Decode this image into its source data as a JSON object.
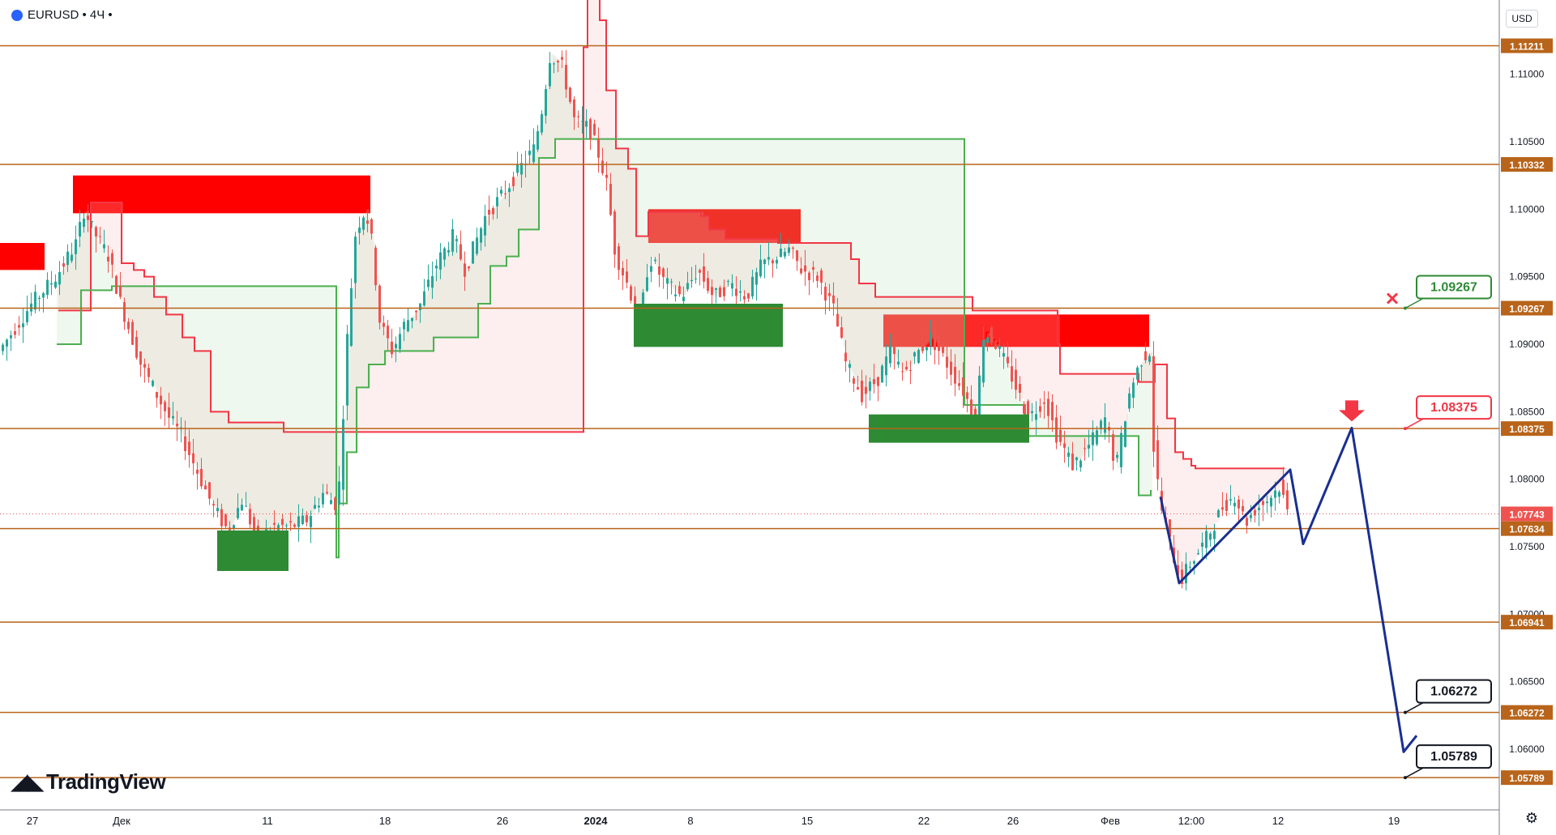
{
  "header": {
    "symbol": "EURUSD",
    "timeframe": "4Ч",
    "title": "EURUSD • 4Ч •",
    "currency": "USD"
  },
  "brand": {
    "logo_text": "TradingView"
  },
  "icons": {
    "globe": "globe-icon",
    "settings": "gear-icon",
    "logo": "tradingview-logo-icon",
    "cross": "cross-icon",
    "down_arrow": "down-arrow-icon"
  },
  "colors": {
    "level_line": "#b8641a",
    "level_label_bg": "#b8641a",
    "supply_zone": "#ff0000",
    "demand_zone": "#2e8b34",
    "trail_red": "#f23645",
    "trail_green": "#4caf50",
    "forecast_path": "#1a2f8f",
    "candle_up": "#26a69a",
    "candle_down": "#ef5350"
  },
  "chart_data": {
    "type": "candlestick",
    "symbol": "EURUSD",
    "interval": "4Ч",
    "ylim": [
      1.0555,
      1.1155
    ],
    "yticks": [
      1.11,
      1.105,
      1.1,
      1.095,
      1.09,
      1.085,
      1.08,
      1.075,
      1.07,
      1.065,
      1.06
    ],
    "ytick_labels": [
      "1.11000",
      "1.10500",
      "1.10000",
      "1.09500",
      "1.09000",
      "1.08500",
      "1.08000",
      "1.07500",
      "1.07000",
      "1.06500",
      "1.06000"
    ],
    "xticks": [
      {
        "label": "27",
        "x": 40
      },
      {
        "label": "Дек",
        "x": 150
      },
      {
        "label": "11",
        "x": 330
      },
      {
        "label": "18",
        "x": 475
      },
      {
        "label": "26",
        "x": 620
      },
      {
        "label": "2024",
        "x": 735
      },
      {
        "label": "8",
        "x": 852
      },
      {
        "label": "15",
        "x": 996
      },
      {
        "label": "22",
        "x": 1140
      },
      {
        "label": "26",
        "x": 1250
      },
      {
        "label": "Фев",
        "x": 1370
      },
      {
        "label": "12:00",
        "x": 1470
      },
      {
        "label": "12",
        "x": 1577
      },
      {
        "label": "19",
        "x": 1720
      }
    ],
    "price_levels": [
      1.11211,
      1.10332,
      1.09267,
      1.08375,
      1.07634,
      1.06941,
      1.06272,
      1.05789
    ],
    "price_level_labels": [
      "1.11211",
      "1.10332",
      "1.09267",
      "1.08375",
      "1.07634",
      "1.06941",
      "1.06272",
      "1.05789"
    ],
    "current_price": 1.07743,
    "current_price_label": "1.07743",
    "target_labels": [
      {
        "label": "1.09267",
        "value": 1.09267,
        "style": "green"
      },
      {
        "label": "1.08375",
        "value": 1.08375,
        "style": "red"
      },
      {
        "label": "1.06272",
        "value": 1.06272,
        "style": "black"
      },
      {
        "label": "1.05789",
        "value": 1.05789,
        "style": "black"
      }
    ],
    "supply_zones": [
      {
        "x0": 0,
        "x1": 55,
        "top": 1.0975,
        "bottom": 1.0955
      },
      {
        "x0": 90,
        "x1": 457,
        "top": 1.1025,
        "bottom": 1.0997
      },
      {
        "x0": 800,
        "x1": 988,
        "top": 1.1,
        "bottom": 1.0975
      },
      {
        "x0": 1090,
        "x1": 1418,
        "top": 1.0922,
        "bottom": 1.0898
      }
    ],
    "demand_zones": [
      {
        "x0": 268,
        "x1": 356,
        "top": 1.0762,
        "bottom": 1.0732
      },
      {
        "x0": 782,
        "x1": 966,
        "top": 1.093,
        "bottom": 1.0898
      },
      {
        "x0": 1072,
        "x1": 1270,
        "top": 1.0848,
        "bottom": 1.0827
      }
    ],
    "price_path": [
      [
        0,
        1.0895
      ],
      [
        40,
        1.093
      ],
      [
        70,
        1.095
      ],
      [
        95,
        1.0975
      ],
      [
        105,
        1.1
      ],
      [
        115,
        1.0985
      ],
      [
        135,
        1.0965
      ],
      [
        150,
        1.093
      ],
      [
        175,
        1.0885
      ],
      [
        195,
        1.0862
      ],
      [
        210,
        1.0845
      ],
      [
        225,
        1.0832
      ],
      [
        245,
        1.0805
      ],
      [
        265,
        1.0778
      ],
      [
        282,
        1.0762
      ],
      [
        300,
        1.0785
      ],
      [
        318,
        1.0755
      ],
      [
        340,
        1.0765
      ],
      [
        360,
        1.0765
      ],
      [
        380,
        1.077
      ],
      [
        400,
        1.079
      ],
      [
        418,
        1.078
      ],
      [
        430,
        1.091
      ],
      [
        440,
        1.0985
      ],
      [
        452,
        1.1
      ],
      [
        460,
        1.0975
      ],
      [
        470,
        1.0915
      ],
      [
        485,
        1.0895
      ],
      [
        500,
        1.0915
      ],
      [
        520,
        1.093
      ],
      [
        540,
        1.096
      ],
      [
        560,
        1.098
      ],
      [
        575,
        1.0955
      ],
      [
        600,
        1.0995
      ],
      [
        620,
        1.101
      ],
      [
        640,
        1.1028
      ],
      [
        660,
        1.1045
      ],
      [
        670,
        1.1075
      ],
      [
        680,
        1.1115
      ],
      [
        695,
        1.1105
      ],
      [
        710,
        1.1065
      ],
      [
        728,
        1.106
      ],
      [
        740,
        1.104
      ],
      [
        750,
        1.1018
      ],
      [
        760,
        1.0968
      ],
      [
        778,
        1.094
      ],
      [
        790,
        1.0915
      ],
      [
        802,
        1.0965
      ],
      [
        822,
        1.0945
      ],
      [
        842,
        1.0935
      ],
      [
        862,
        1.0955
      ],
      [
        882,
        1.0935
      ],
      [
        902,
        1.0945
      ],
      [
        922,
        1.0935
      ],
      [
        942,
        1.096
      ],
      [
        962,
        1.0965
      ],
      [
        975,
        1.097
      ],
      [
        990,
        1.0955
      ],
      [
        1010,
        1.095
      ],
      [
        1030,
        1.0925
      ],
      [
        1045,
        1.0885
      ],
      [
        1065,
        1.0862
      ],
      [
        1085,
        1.0875
      ],
      [
        1100,
        1.0895
      ],
      [
        1115,
        1.0878
      ],
      [
        1135,
        1.0895
      ],
      [
        1150,
        1.0905
      ],
      [
        1170,
        1.0885
      ],
      [
        1190,
        1.0865
      ],
      [
        1205,
        1.0845
      ],
      [
        1215,
        1.091
      ],
      [
        1230,
        1.09
      ],
      [
        1250,
        1.0875
      ],
      [
        1270,
        1.0845
      ],
      [
        1290,
        1.086
      ],
      [
        1305,
        1.0832
      ],
      [
        1325,
        1.081
      ],
      [
        1345,
        1.0825
      ],
      [
        1365,
        1.0845
      ],
      [
        1378,
        1.0808
      ],
      [
        1395,
        1.0865
      ],
      [
        1410,
        1.089
      ],
      [
        1420,
        1.0895
      ],
      [
        1425,
        1.0815
      ],
      [
        1435,
        1.0775
      ],
      [
        1448,
        1.0745
      ],
      [
        1458,
        1.0725
      ],
      [
        1470,
        1.0738
      ],
      [
        1482,
        1.0748
      ],
      [
        1495,
        1.0762
      ],
      [
        1510,
        1.078
      ],
      [
        1525,
        1.0788
      ],
      [
        1538,
        1.0768
      ],
      [
        1550,
        1.0778
      ],
      [
        1565,
        1.0785
      ],
      [
        1580,
        1.0795
      ],
      [
        1590,
        1.0775
      ]
    ],
    "forecast_path": [
      [
        1432,
        1.0787
      ],
      [
        1455,
        1.0723
      ],
      [
        1592,
        1.0807
      ],
      [
        1608,
        1.0752
      ],
      [
        1668,
        1.0838
      ],
      [
        1732,
        1.0598
      ],
      [
        1748,
        1.061
      ]
    ],
    "trailing_stop_red": [
      [
        72,
        1.0925
      ],
      [
        112,
        1.1005
      ],
      [
        135,
        1.1005
      ],
      [
        150,
        1.096
      ],
      [
        165,
        1.0955
      ],
      [
        178,
        1.095
      ],
      [
        190,
        1.0935
      ],
      [
        205,
        1.0922
      ],
      [
        225,
        1.0905
      ],
      [
        240,
        1.0895
      ],
      [
        260,
        1.085
      ],
      [
        282,
        1.0842
      ],
      [
        340,
        1.0842
      ],
      [
        350,
        1.0835
      ],
      [
        410,
        1.0835
      ],
      [
        720,
        1.112
      ],
      [
        725,
        1.1158
      ],
      [
        735,
        1.1158
      ],
      [
        740,
        1.114
      ],
      [
        748,
        1.1088
      ],
      [
        760,
        1.1045
      ],
      [
        775,
        1.103
      ],
      [
        785,
        1.098
      ],
      [
        800,
        1.0998
      ],
      [
        840,
        1.0998
      ],
      [
        865,
        1.0995
      ],
      [
        875,
        1.0985
      ],
      [
        895,
        1.0978
      ],
      [
        945,
        1.0978
      ],
      [
        960,
        1.0975
      ],
      [
        990,
        1.0975
      ],
      [
        1000,
        1.0975
      ],
      [
        1040,
        1.0975
      ],
      [
        1050,
        1.0963
      ],
      [
        1060,
        1.0945
      ],
      [
        1080,
        1.0935
      ],
      [
        1190,
        1.0935
      ],
      [
        1200,
        1.0925
      ],
      [
        1300,
        1.0925
      ],
      [
        1305,
        1.09
      ],
      [
        1308,
        1.0878
      ],
      [
        1400,
        1.0878
      ],
      [
        1405,
        1.0872
      ],
      [
        1425,
        1.0885
      ],
      [
        1440,
        1.0845
      ],
      [
        1450,
        1.082
      ],
      [
        1460,
        1.0815
      ],
      [
        1470,
        1.081
      ],
      [
        1475,
        1.0808
      ],
      [
        1585,
        1.0808
      ]
    ],
    "trailing_stop_green": [
      [
        70,
        1.09
      ],
      [
        100,
        1.094
      ],
      [
        138,
        1.0943
      ],
      [
        415,
        1.0742
      ],
      [
        418,
        1.0782
      ],
      [
        428,
        1.082
      ],
      [
        440,
        1.0868
      ],
      [
        455,
        1.0885
      ],
      [
        475,
        1.0895
      ],
      [
        535,
        1.0905
      ],
      [
        590,
        1.093
      ],
      [
        605,
        1.0958
      ],
      [
        625,
        1.0965
      ],
      [
        640,
        1.0985
      ],
      [
        665,
        1.1038
      ],
      [
        685,
        1.1052
      ],
      [
        700,
        1.1052
      ],
      [
        1190,
        1.0855
      ],
      [
        1265,
        1.0832
      ],
      [
        1290,
        1.0832
      ],
      [
        1405,
        1.0788
      ],
      [
        1420,
        1.0792
      ]
    ]
  }
}
